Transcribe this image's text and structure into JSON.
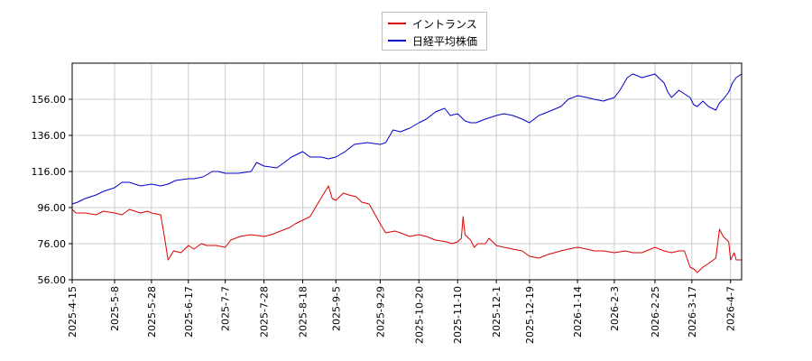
{
  "chart_data": {
    "type": "line",
    "title": "",
    "xlabel": "",
    "ylabel": "",
    "ylim": [
      56,
      176
    ],
    "yticks": [
      56.0,
      76.0,
      96.0,
      116.0,
      136.0,
      156.0
    ],
    "ytick_labels": [
      "56.00",
      "76.00",
      "96.00",
      "116.00",
      "136.00",
      "156.00"
    ],
    "xlim": [
      "2025-04-15",
      "2026-04-13"
    ],
    "xticks": [
      "2025-4-15",
      "2025-5-8",
      "2025-5-28",
      "2025-6-17",
      "2025-7-7",
      "2025-7-28",
      "2025-8-18",
      "2025-9-5",
      "2025-9-29",
      "2025-10-20",
      "2025-11-10",
      "2025-12-1",
      "2025-12-19",
      "2026-1-14",
      "2026-2-3",
      "2026-2-25",
      "2026-3-17",
      "2026-4-7"
    ],
    "grid": true,
    "legend_position": "top-center",
    "series": [
      {
        "name": "イントランス",
        "color": "#dd0000",
        "points": [
          [
            "2025-04-15",
            95
          ],
          [
            "2025-04-17",
            93
          ],
          [
            "2025-04-22",
            93
          ],
          [
            "2025-04-28",
            92
          ],
          [
            "2025-05-02",
            94
          ],
          [
            "2025-05-08",
            93
          ],
          [
            "2025-05-12",
            92
          ],
          [
            "2025-05-16",
            95
          ],
          [
            "2025-05-22",
            93
          ],
          [
            "2025-05-26",
            94
          ],
          [
            "2025-05-28",
            93
          ],
          [
            "2025-06-02",
            92
          ],
          [
            "2025-06-04",
            80
          ],
          [
            "2025-06-06",
            67
          ],
          [
            "2025-06-09",
            72
          ],
          [
            "2025-06-13",
            71
          ],
          [
            "2025-06-17",
            75
          ],
          [
            "2025-06-20",
            73
          ],
          [
            "2025-06-24",
            76
          ],
          [
            "2025-06-27",
            75
          ],
          [
            "2025-07-02",
            75
          ],
          [
            "2025-07-07",
            74
          ],
          [
            "2025-07-10",
            78
          ],
          [
            "2025-07-15",
            80
          ],
          [
            "2025-07-21",
            81
          ],
          [
            "2025-07-28",
            80
          ],
          [
            "2025-08-01",
            81
          ],
          [
            "2025-08-06",
            83
          ],
          [
            "2025-08-11",
            85
          ],
          [
            "2025-08-14",
            87
          ],
          [
            "2025-08-18",
            89
          ],
          [
            "2025-08-22",
            91
          ],
          [
            "2025-08-26",
            98
          ],
          [
            "2025-08-29",
            103
          ],
          [
            "2025-09-01",
            108
          ],
          [
            "2025-09-03",
            101
          ],
          [
            "2025-09-05",
            100
          ],
          [
            "2025-09-09",
            104
          ],
          [
            "2025-09-12",
            103
          ],
          [
            "2025-09-16",
            102
          ],
          [
            "2025-09-19",
            99
          ],
          [
            "2025-09-23",
            98
          ],
          [
            "2025-09-29",
            87
          ],
          [
            "2025-10-02",
            82
          ],
          [
            "2025-10-07",
            83
          ],
          [
            "2025-10-10",
            82
          ],
          [
            "2025-10-15",
            80
          ],
          [
            "2025-10-20",
            81
          ],
          [
            "2025-10-24",
            80
          ],
          [
            "2025-10-29",
            78
          ],
          [
            "2025-11-04",
            77
          ],
          [
            "2025-11-07",
            76
          ],
          [
            "2025-11-10",
            77
          ],
          [
            "2025-11-12",
            79
          ],
          [
            "2025-11-13",
            91
          ],
          [
            "2025-11-14",
            81
          ],
          [
            "2025-11-17",
            78
          ],
          [
            "2025-11-19",
            74
          ],
          [
            "2025-11-21",
            76
          ],
          [
            "2025-11-25",
            76
          ],
          [
            "2025-11-27",
            79
          ],
          [
            "2025-12-01",
            75
          ],
          [
            "2025-12-05",
            74
          ],
          [
            "2025-12-10",
            73
          ],
          [
            "2025-12-15",
            72
          ],
          [
            "2025-12-19",
            69
          ],
          [
            "2025-12-24",
            68
          ],
          [
            "2025-12-29",
            70
          ],
          [
            "2026-01-05",
            72
          ],
          [
            "2026-01-09",
            73
          ],
          [
            "2026-01-14",
            74
          ],
          [
            "2026-01-19",
            73
          ],
          [
            "2026-01-23",
            72
          ],
          [
            "2026-01-28",
            72
          ],
          [
            "2026-02-03",
            71
          ],
          [
            "2026-02-09",
            72
          ],
          [
            "2026-02-13",
            71
          ],
          [
            "2026-02-18",
            71
          ],
          [
            "2026-02-25",
            74
          ],
          [
            "2026-03-02",
            72
          ],
          [
            "2026-03-06",
            71
          ],
          [
            "2026-03-10",
            72
          ],
          [
            "2026-03-13",
            72
          ],
          [
            "2026-03-16",
            63
          ],
          [
            "2026-03-18",
            62
          ],
          [
            "2026-03-20",
            60
          ],
          [
            "2026-03-23",
            63
          ],
          [
            "2026-03-26",
            65
          ],
          [
            "2026-03-30",
            68
          ],
          [
            "2026-04-01",
            84
          ],
          [
            "2026-04-03",
            80
          ],
          [
            "2026-04-06",
            77
          ],
          [
            "2026-04-07",
            67
          ],
          [
            "2026-04-09",
            71
          ],
          [
            "2026-04-10",
            67
          ],
          [
            "2026-04-13",
            67
          ]
        ]
      },
      {
        "name": "日経平均株価",
        "color": "#0000cc",
        "points": [
          [
            "2025-04-15",
            98
          ],
          [
            "2025-04-18",
            99
          ],
          [
            "2025-04-22",
            101
          ],
          [
            "2025-04-28",
            103
          ],
          [
            "2025-05-02",
            105
          ],
          [
            "2025-05-08",
            107
          ],
          [
            "2025-05-12",
            110
          ],
          [
            "2025-05-16",
            110
          ],
          [
            "2025-05-22",
            108
          ],
          [
            "2025-05-28",
            109
          ],
          [
            "2025-06-02",
            108
          ],
          [
            "2025-06-06",
            109
          ],
          [
            "2025-06-10",
            111
          ],
          [
            "2025-06-17",
            112
          ],
          [
            "2025-06-20",
            112
          ],
          [
            "2025-06-25",
            113
          ],
          [
            "2025-06-30",
            116
          ],
          [
            "2025-07-03",
            116
          ],
          [
            "2025-07-07",
            115
          ],
          [
            "2025-07-14",
            115
          ],
          [
            "2025-07-21",
            116
          ],
          [
            "2025-07-24",
            121
          ],
          [
            "2025-07-28",
            119
          ],
          [
            "2025-08-04",
            118
          ],
          [
            "2025-08-08",
            121
          ],
          [
            "2025-08-12",
            124
          ],
          [
            "2025-08-18",
            127
          ],
          [
            "2025-08-22",
            124
          ],
          [
            "2025-08-28",
            124
          ],
          [
            "2025-09-01",
            123
          ],
          [
            "2025-09-05",
            124
          ],
          [
            "2025-09-10",
            127
          ],
          [
            "2025-09-15",
            131
          ],
          [
            "2025-09-22",
            132
          ],
          [
            "2025-09-29",
            131
          ],
          [
            "2025-10-02",
            132
          ],
          [
            "2025-10-06",
            139
          ],
          [
            "2025-10-10",
            138
          ],
          [
            "2025-10-15",
            140
          ],
          [
            "2025-10-20",
            143
          ],
          [
            "2025-10-24",
            145
          ],
          [
            "2025-10-29",
            149
          ],
          [
            "2025-11-03",
            151
          ],
          [
            "2025-11-06",
            147
          ],
          [
            "2025-11-10",
            148
          ],
          [
            "2025-11-14",
            144
          ],
          [
            "2025-11-17",
            143
          ],
          [
            "2025-11-20",
            143
          ],
          [
            "2025-11-25",
            145
          ],
          [
            "2025-12-01",
            147
          ],
          [
            "2025-12-05",
            148
          ],
          [
            "2025-12-10",
            147
          ],
          [
            "2025-12-15",
            145
          ],
          [
            "2025-12-19",
            143
          ],
          [
            "2025-12-24",
            147
          ],
          [
            "2025-12-29",
            149
          ],
          [
            "2026-01-05",
            152
          ],
          [
            "2026-01-09",
            156
          ],
          [
            "2026-01-14",
            158
          ],
          [
            "2026-01-19",
            157
          ],
          [
            "2026-01-23",
            156
          ],
          [
            "2026-01-28",
            155
          ],
          [
            "2026-02-03",
            157
          ],
          [
            "2026-02-06",
            161
          ],
          [
            "2026-02-10",
            168
          ],
          [
            "2026-02-13",
            170
          ],
          [
            "2026-02-18",
            168
          ],
          [
            "2026-02-25",
            170
          ],
          [
            "2026-03-02",
            165
          ],
          [
            "2026-03-04",
            160
          ],
          [
            "2026-03-06",
            157
          ],
          [
            "2026-03-10",
            161
          ],
          [
            "2026-03-13",
            159
          ],
          [
            "2026-03-16",
            157
          ],
          [
            "2026-03-18",
            153
          ],
          [
            "2026-03-20",
            152
          ],
          [
            "2026-03-23",
            155
          ],
          [
            "2026-03-26",
            152
          ],
          [
            "2026-03-30",
            150
          ],
          [
            "2026-04-01",
            154
          ],
          [
            "2026-04-03",
            156
          ],
          [
            "2026-04-06",
            160
          ],
          [
            "2026-04-08",
            165
          ],
          [
            "2026-04-10",
            168
          ],
          [
            "2026-04-13",
            170
          ]
        ]
      }
    ]
  }
}
